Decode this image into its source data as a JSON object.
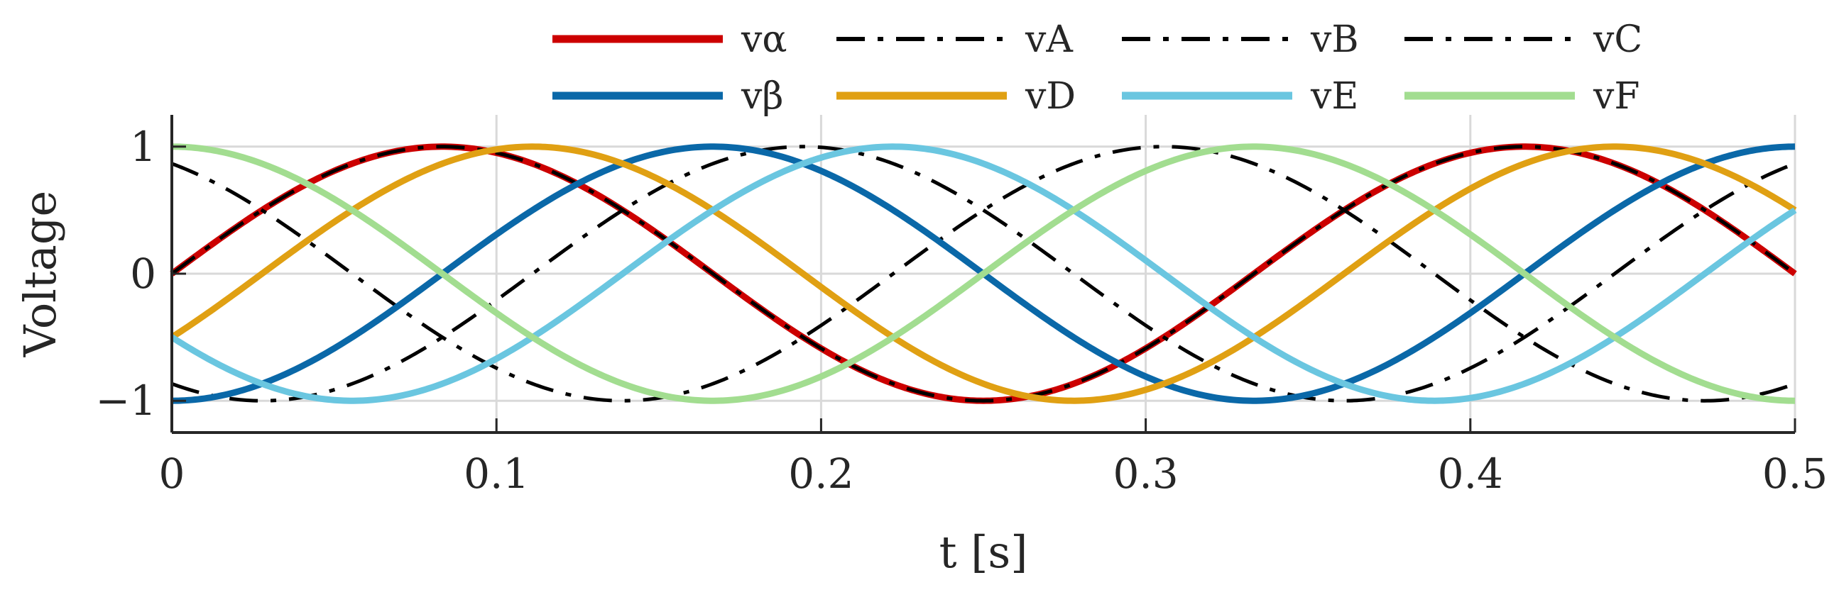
{
  "chart_data": {
    "type": "line",
    "title": "",
    "xlabel": "t [s]",
    "ylabel": "Voltage",
    "xlim": [
      0,
      0.5
    ],
    "ylim": [
      -1.25,
      1.25
    ],
    "xticks": [
      0,
      0.1,
      0.2,
      0.3,
      0.4,
      0.5
    ],
    "xtick_labels": [
      "0",
      "0.1",
      "0.2",
      "0.3",
      "0.4",
      "0.5"
    ],
    "yticks": [
      -1,
      0,
      1
    ],
    "ytick_labels": [
      "−1",
      "0",
      "1"
    ],
    "grid": true,
    "legend_position": "top",
    "frequency_hz": 3,
    "series": [
      {
        "name": "vα",
        "color": "#cc0000",
        "style": "solid",
        "amplitude": 1,
        "phase_deg": 0
      },
      {
        "name": "vA",
        "color": "#000000",
        "style": "dashdot",
        "amplitude": 1,
        "phase_deg": 0
      },
      {
        "name": "vB",
        "color": "#000000",
        "style": "dashdot",
        "amplitude": 1,
        "phase_deg": -120
      },
      {
        "name": "vC",
        "color": "#000000",
        "style": "dashdot",
        "amplitude": 1,
        "phase_deg": 120
      },
      {
        "name": "vβ",
        "color": "#0a68a8",
        "style": "solid",
        "amplitude": 1,
        "phase_deg": -90
      },
      {
        "name": "vD",
        "color": "#e0a013",
        "style": "solid",
        "amplitude": 1,
        "phase_deg": -30
      },
      {
        "name": "vE",
        "color": "#6ac6e0",
        "style": "solid",
        "amplitude": 1,
        "phase_deg": -150
      },
      {
        "name": "vF",
        "color": "#a2dd90",
        "style": "solid",
        "amplitude": 1,
        "phase_deg": 90
      }
    ]
  }
}
